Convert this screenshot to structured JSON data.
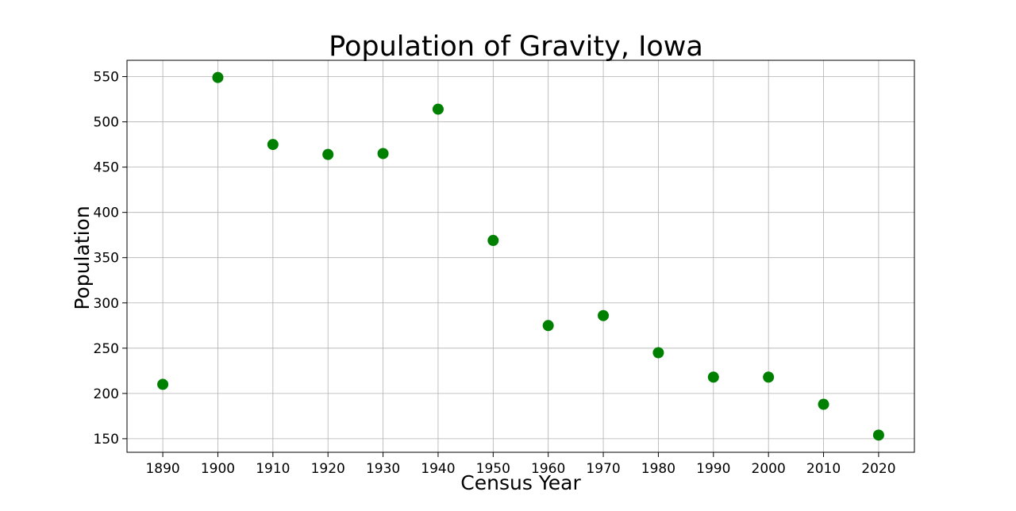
{
  "chart_data": {
    "type": "scatter",
    "title": "Population of Gravity, Iowa",
    "xlabel": "Census Year",
    "ylabel": "Population",
    "x": [
      1890,
      1900,
      1910,
      1920,
      1930,
      1940,
      1950,
      1960,
      1970,
      1980,
      1990,
      2000,
      2010,
      2020
    ],
    "y": [
      210,
      549,
      475,
      464,
      465,
      514,
      369,
      275,
      286,
      245,
      218,
      218,
      188,
      154
    ],
    "xticks": [
      1890,
      1900,
      1910,
      1920,
      1930,
      1940,
      1950,
      1960,
      1970,
      1980,
      1990,
      2000,
      2010,
      2020
    ],
    "yticks": [
      150,
      200,
      250,
      300,
      350,
      400,
      450,
      500,
      550
    ],
    "xlim": [
      1883.5,
      2026.5
    ],
    "ylim": [
      135,
      568
    ],
    "grid": true,
    "marker_color": "#008000"
  }
}
